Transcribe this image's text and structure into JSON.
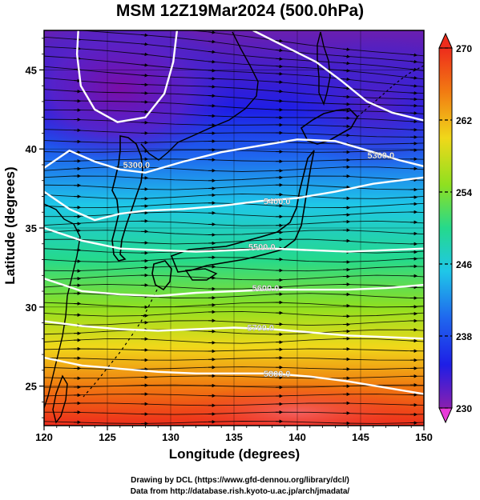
{
  "title": "MSM 12Z19Mar2024 (500.0hPa)",
  "chart_data": {
    "type": "map",
    "x_range": [
      120,
      150
    ],
    "y_range": [
      22.5,
      47.5
    ],
    "x_ticks": [
      120,
      125,
      130,
      135,
      140,
      145,
      150
    ],
    "y_ticks": [
      25,
      30,
      35,
      40,
      45
    ],
    "xlabel": "Longitude (degrees)",
    "ylabel": "Latitude  (degrees)",
    "colorbar": {
      "min": 230,
      "max": 270,
      "tick_labels": [
        "270",
        "262",
        "254",
        "246",
        "238",
        "230"
      ],
      "tick_values": [
        270,
        262,
        254,
        246,
        238,
        230
      ]
    },
    "contours": [
      {
        "label": "5300.0",
        "label_x": 127.3,
        "label_y": 39.0,
        "points": [
          [
            120,
            38.8
          ],
          [
            122,
            39.9
          ],
          [
            124,
            39.2
          ],
          [
            126,
            38.7
          ],
          [
            128,
            38.5
          ],
          [
            131,
            39.2
          ],
          [
            134,
            39.8
          ],
          [
            137,
            40.2
          ],
          [
            140,
            40.6
          ],
          [
            143,
            40.5
          ],
          [
            146,
            39.8
          ],
          [
            148,
            39.3
          ],
          [
            150,
            38.9
          ]
        ]
      },
      {
        "label": "5300.0",
        "label_x": 146.6,
        "label_y": 39.6,
        "points": []
      },
      {
        "label": "5400.0",
        "label_x": 138.4,
        "label_y": 36.7,
        "points": [
          [
            120,
            37.3
          ],
          [
            122,
            36.2
          ],
          [
            124,
            35.5
          ],
          [
            126,
            35.9
          ],
          [
            128,
            36.1
          ],
          [
            131,
            36.2
          ],
          [
            134,
            36.4
          ],
          [
            137,
            36.7
          ],
          [
            140,
            36.9
          ],
          [
            143,
            37.3
          ],
          [
            146,
            37.8
          ],
          [
            148,
            38.0
          ],
          [
            150,
            38.2
          ]
        ]
      },
      {
        "label": "5500.0",
        "label_x": 137.2,
        "label_y": 33.8,
        "points": [
          [
            120,
            35.0
          ],
          [
            123,
            34.2
          ],
          [
            126,
            33.7
          ],
          [
            129,
            33.6
          ],
          [
            132,
            33.5
          ],
          [
            135,
            33.6
          ],
          [
            138,
            33.7
          ],
          [
            141,
            33.6
          ],
          [
            144,
            33.5
          ],
          [
            147,
            33.6
          ],
          [
            150,
            33.7
          ]
        ]
      },
      {
        "label": "5600.0",
        "label_x": 137.5,
        "label_y": 31.2,
        "points": [
          [
            120,
            31.8
          ],
          [
            123,
            31.0
          ],
          [
            126,
            30.8
          ],
          [
            129,
            30.7
          ],
          [
            132,
            30.9
          ],
          [
            135,
            31.0
          ],
          [
            138,
            31.1
          ],
          [
            141,
            31.1
          ],
          [
            144,
            31.1
          ],
          [
            147,
            31.2
          ],
          [
            150,
            31.4
          ]
        ]
      },
      {
        "label": "5700.0",
        "label_x": 137.1,
        "label_y": 28.7,
        "points": [
          [
            120,
            29.1
          ],
          [
            123,
            28.8
          ],
          [
            126,
            28.6
          ],
          [
            129,
            28.5
          ],
          [
            132,
            28.6
          ],
          [
            135,
            28.7
          ],
          [
            138,
            28.6
          ],
          [
            141,
            28.4
          ],
          [
            144,
            28.2
          ],
          [
            147,
            28.1
          ],
          [
            150,
            28.0
          ]
        ]
      },
      {
        "label": "5800.0",
        "label_x": 138.4,
        "label_y": 25.8,
        "points": [
          [
            120,
            26.8
          ],
          [
            123,
            26.3
          ],
          [
            126,
            26.1
          ],
          [
            129,
            25.9
          ],
          [
            132,
            25.8
          ],
          [
            135,
            25.8
          ],
          [
            138,
            25.8
          ],
          [
            141,
            25.6
          ],
          [
            144,
            25.3
          ],
          [
            147,
            24.9
          ],
          [
            150,
            24.5
          ]
        ]
      }
    ],
    "low_contours": [
      {
        "points": [
          [
            122.7,
            47.5
          ],
          [
            122.6,
            46.0
          ],
          [
            122.9,
            44.0
          ],
          [
            124.0,
            42.5
          ],
          [
            125.8,
            41.7
          ],
          [
            128.0,
            42.0
          ],
          [
            129.5,
            43.5
          ],
          [
            130.2,
            45.5
          ],
          [
            130.5,
            47.5
          ]
        ]
      },
      {
        "points": [
          [
            136.5,
            47.5
          ],
          [
            139.0,
            46.5
          ],
          [
            141.5,
            45.5
          ],
          [
            143.5,
            44.3
          ],
          [
            145.5,
            43.0
          ],
          [
            147.5,
            42.3
          ],
          [
            150,
            41.8
          ]
        ]
      }
    ]
  },
  "credits": {
    "line1": "Drawing by DCL (https://www.gfd-dennou.org/library/dcl/)",
    "line2": "Data from http://database.rish.kyoto-u.ac.jp/arch/jmadata/"
  }
}
